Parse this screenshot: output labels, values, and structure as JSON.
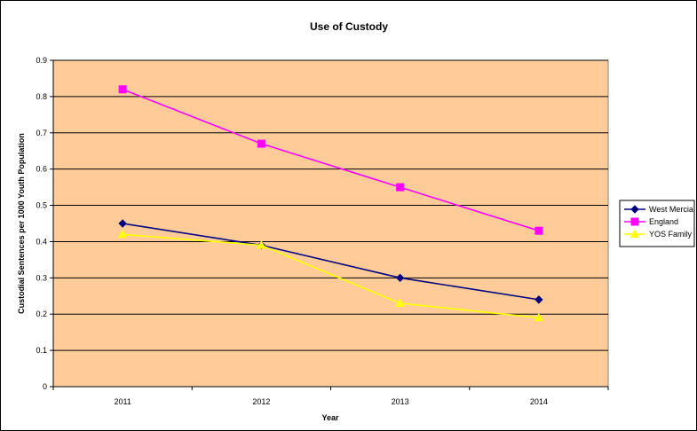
{
  "chart_data": {
    "type": "line",
    "title": "Use of Custody",
    "xlabel": "Year",
    "ylabel": "Custodial Sentences per 1000 Youth Population",
    "categories": [
      "2011",
      "2012",
      "2013",
      "2014"
    ],
    "ylim": [
      0,
      0.9
    ],
    "yticks": [
      "0",
      "0.1",
      "0.2",
      "0.3",
      "0.4",
      "0.5",
      "0.6",
      "0.7",
      "0.8",
      "0.9"
    ],
    "grid": true,
    "legend_position": "right",
    "plot_background": "#FFCC99",
    "series": [
      {
        "name": "West Mercia",
        "values": [
          0.45,
          0.39,
          0.3,
          0.24
        ],
        "color": "#000080",
        "marker": "diamond"
      },
      {
        "name": "England",
        "values": [
          0.82,
          0.67,
          0.55,
          0.43
        ],
        "color": "#FF00FF",
        "marker": "square"
      },
      {
        "name": "YOS Family",
        "values": [
          0.42,
          0.39,
          0.23,
          0.19
        ],
        "color": "#FFFF00",
        "marker": "triangle"
      }
    ]
  }
}
